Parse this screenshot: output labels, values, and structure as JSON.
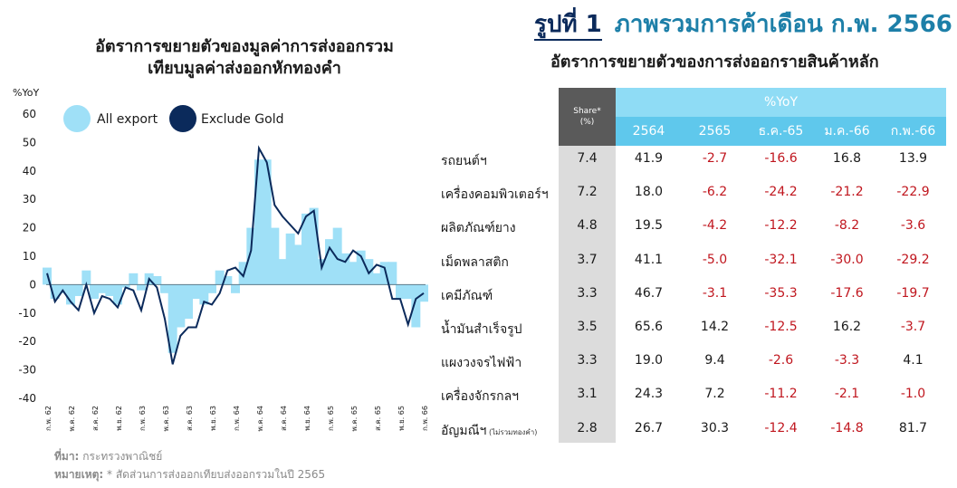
{
  "figure": {
    "number": "รูปที่ 1",
    "title": "ภาพรวมการค้าเดือน ก.พ. 2566"
  },
  "chart_data": [
    {
      "type": "bar+line",
      "title": "อัตราการขยายตัวของมูลค่าการส่งออกรวม",
      "subtitle": "เทียบมูลค่าส่งออกหักทองคำ",
      "ylabel": "%YoY",
      "ylim": [
        -40,
        60
      ],
      "yticks": [
        60,
        50,
        40,
        30,
        20,
        10,
        0,
        -10,
        -20,
        -30,
        -40
      ],
      "grid": false,
      "legend_position": "top-left",
      "x_tick_labels": [
        "ก.พ. 62",
        "พ.ค. 62",
        "ส.ค. 62",
        "พ.ย. 62",
        "ก.พ. 63",
        "พ.ค. 63",
        "ส.ค. 63",
        "พ.ย. 63",
        "ก.พ. 64",
        "พ.ค. 64",
        "ส.ค. 64",
        "พ.ย. 64",
        "ก.พ. 65",
        "พ.ค. 65",
        "ส.ค. 65",
        "พ.ย. 65",
        "ก.พ. 66"
      ],
      "series": [
        {
          "name": "All export",
          "type": "bar",
          "color": "#9fe0f7",
          "values": [
            6,
            -5,
            -3,
            -7,
            -4,
            5,
            -5,
            -3,
            -4,
            -7,
            -1,
            4,
            -2,
            4,
            3,
            -3,
            -24,
            -15,
            -12,
            -5,
            -7,
            -3,
            5,
            3,
            -3,
            8,
            20,
            44,
            44,
            20,
            9,
            18,
            14,
            25,
            27,
            9,
            16,
            20,
            11,
            8,
            12,
            9,
            4,
            8,
            8,
            -5,
            -5,
            -15,
            -6
          ]
        },
        {
          "name": "Exclude Gold",
          "type": "line",
          "color": "#0b2a5b",
          "values": [
            4,
            -6,
            -2,
            -6,
            -9,
            0,
            -10,
            -4,
            -5,
            -8,
            -1,
            -2,
            -9,
            2,
            -1,
            -12,
            -28,
            -18,
            -15,
            -15,
            -6,
            -7,
            -3,
            5,
            6,
            3,
            12,
            48,
            43,
            28,
            24,
            21,
            18,
            24,
            26,
            6,
            13,
            9,
            8,
            12,
            10,
            4,
            7,
            6,
            -5,
            -5,
            -14,
            -5,
            -3
          ]
        }
      ]
    },
    {
      "type": "table",
      "title": "อัตราการขยายตัวของการส่งออกรายสินค้าหลัก",
      "share_header": "Share*",
      "share_unit": "(%)",
      "yoy_header": "%YoY",
      "columns": [
        "2564",
        "2565",
        "ธ.ค.-65",
        "ม.ค.-66",
        "ก.พ.-66"
      ],
      "rows": [
        {
          "label": "รถยนต์ฯ",
          "share": "7.4",
          "values": [
            "41.9",
            "-2.7",
            "-16.6",
            "16.8",
            "13.9"
          ]
        },
        {
          "label": "เครื่องคอมพิวเตอร์ฯ",
          "share": "7.2",
          "values": [
            "18.0",
            "-6.2",
            "-24.2",
            "-21.2",
            "-22.9"
          ]
        },
        {
          "label": "ผลิตภัณฑ์ยาง",
          "share": "4.8",
          "values": [
            "19.5",
            "-4.2",
            "-12.2",
            "-8.2",
            "-3.6"
          ]
        },
        {
          "label": "เม็ดพลาสติก",
          "share": "3.7",
          "values": [
            "41.1",
            "-5.0",
            "-32.1",
            "-30.0",
            "-29.2"
          ]
        },
        {
          "label": "เคมีภัณฑ์",
          "share": "3.3",
          "values": [
            "46.7",
            "-3.1",
            "-35.3",
            "-17.6",
            "-19.7"
          ]
        },
        {
          "label": "น้ำมันสำเร็จรูป",
          "share": "3.5",
          "values": [
            "65.6",
            "14.2",
            "-12.5",
            "16.2",
            "-3.7"
          ]
        },
        {
          "label": "แผงวงจรไฟฟ้า",
          "share": "3.3",
          "values": [
            "19.0",
            "9.4",
            "-2.6",
            "-3.3",
            "4.1"
          ]
        },
        {
          "label": "เครื่องจักรกลฯ",
          "share": "3.1",
          "values": [
            "24.3",
            "7.2",
            "-11.2",
            "-2.1",
            "-1.0"
          ]
        },
        {
          "label": "อัญมณีฯ",
          "label_note": "(ไม่รวมทองคำ)",
          "share": "2.8",
          "values": [
            "26.7",
            "30.3",
            "-12.4",
            "-14.8",
            "81.7"
          ]
        }
      ]
    }
  ],
  "footnote": {
    "source_label": "ที่มา:",
    "source": "กระทรวงพาณิชย์",
    "note_label": "หมายเหตุ:",
    "note": "* สัดส่วนการส่งออกเทียบส่งออกรวมในปี 2565"
  },
  "colors": {
    "title_dark": "#0b2a5b",
    "title_accent": "#1d7fa8",
    "negative": "#c0161e",
    "header_light": "#8fdcf5",
    "header_mid": "#5fc8ec",
    "share_head": "#5a5a5a",
    "share_bg": "#dcdcdc"
  }
}
